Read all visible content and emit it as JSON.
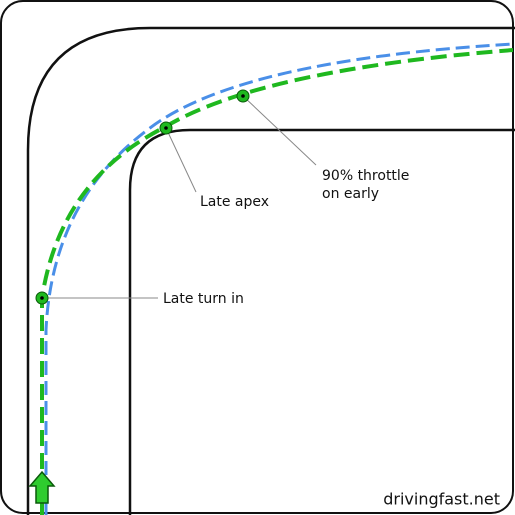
{
  "annotations": [
    {
      "lines": [
        "Late turn in"
      ]
    },
    {
      "lines": [
        "Late apex"
      ]
    },
    {
      "lines": [
        "90% throttle",
        "on early"
      ]
    }
  ],
  "watermark": "drivingfast.net"
}
